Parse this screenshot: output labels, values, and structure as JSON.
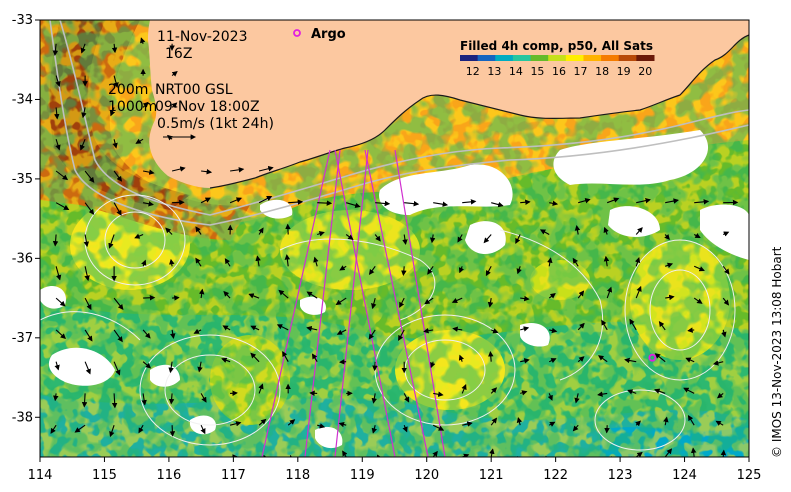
{
  "map": {
    "lon_range": [
      114,
      125
    ],
    "lat_range": [
      -38.5,
      -33
    ],
    "x_ticks": [
      "114",
      "115",
      "116",
      "117",
      "118",
      "119",
      "120",
      "121",
      "122",
      "123",
      "124",
      "125"
    ],
    "y_ticks": [
      "-33",
      "-34",
      "-35",
      "-36",
      "-37",
      "-38"
    ],
    "land_color": "#fcc8a0",
    "cloud_color": "#ffffff"
  },
  "annotations": {
    "date": "11-Nov-2023",
    "time": "16Z",
    "contour_200": "200m",
    "contour_1000": "1000m",
    "product": "NRT00 GSL",
    "product_time": "09-Nov 18:00Z",
    "velocity_scale": "0.5m/s (1kt 24h)"
  },
  "argo": {
    "label": "Argo",
    "color": "#e020e0",
    "float_lon": 123.5,
    "float_lat": -37.25
  },
  "colorbar": {
    "title": "Filled 4h comp, p50, All Sats",
    "ticks": [
      "12",
      "13",
      "14",
      "15",
      "16",
      "17",
      "18",
      "19",
      "20"
    ],
    "colors": [
      "#1a237e",
      "#1565c0",
      "#00acc1",
      "#26c6a0",
      "#66bb2a",
      "#c6e01a",
      "#ffee00",
      "#ffb300",
      "#f57c00",
      "#b84a0a",
      "#6b1a0a"
    ]
  },
  "credit": "© IMOS 13-Nov-2023 13:08 Hobart"
}
